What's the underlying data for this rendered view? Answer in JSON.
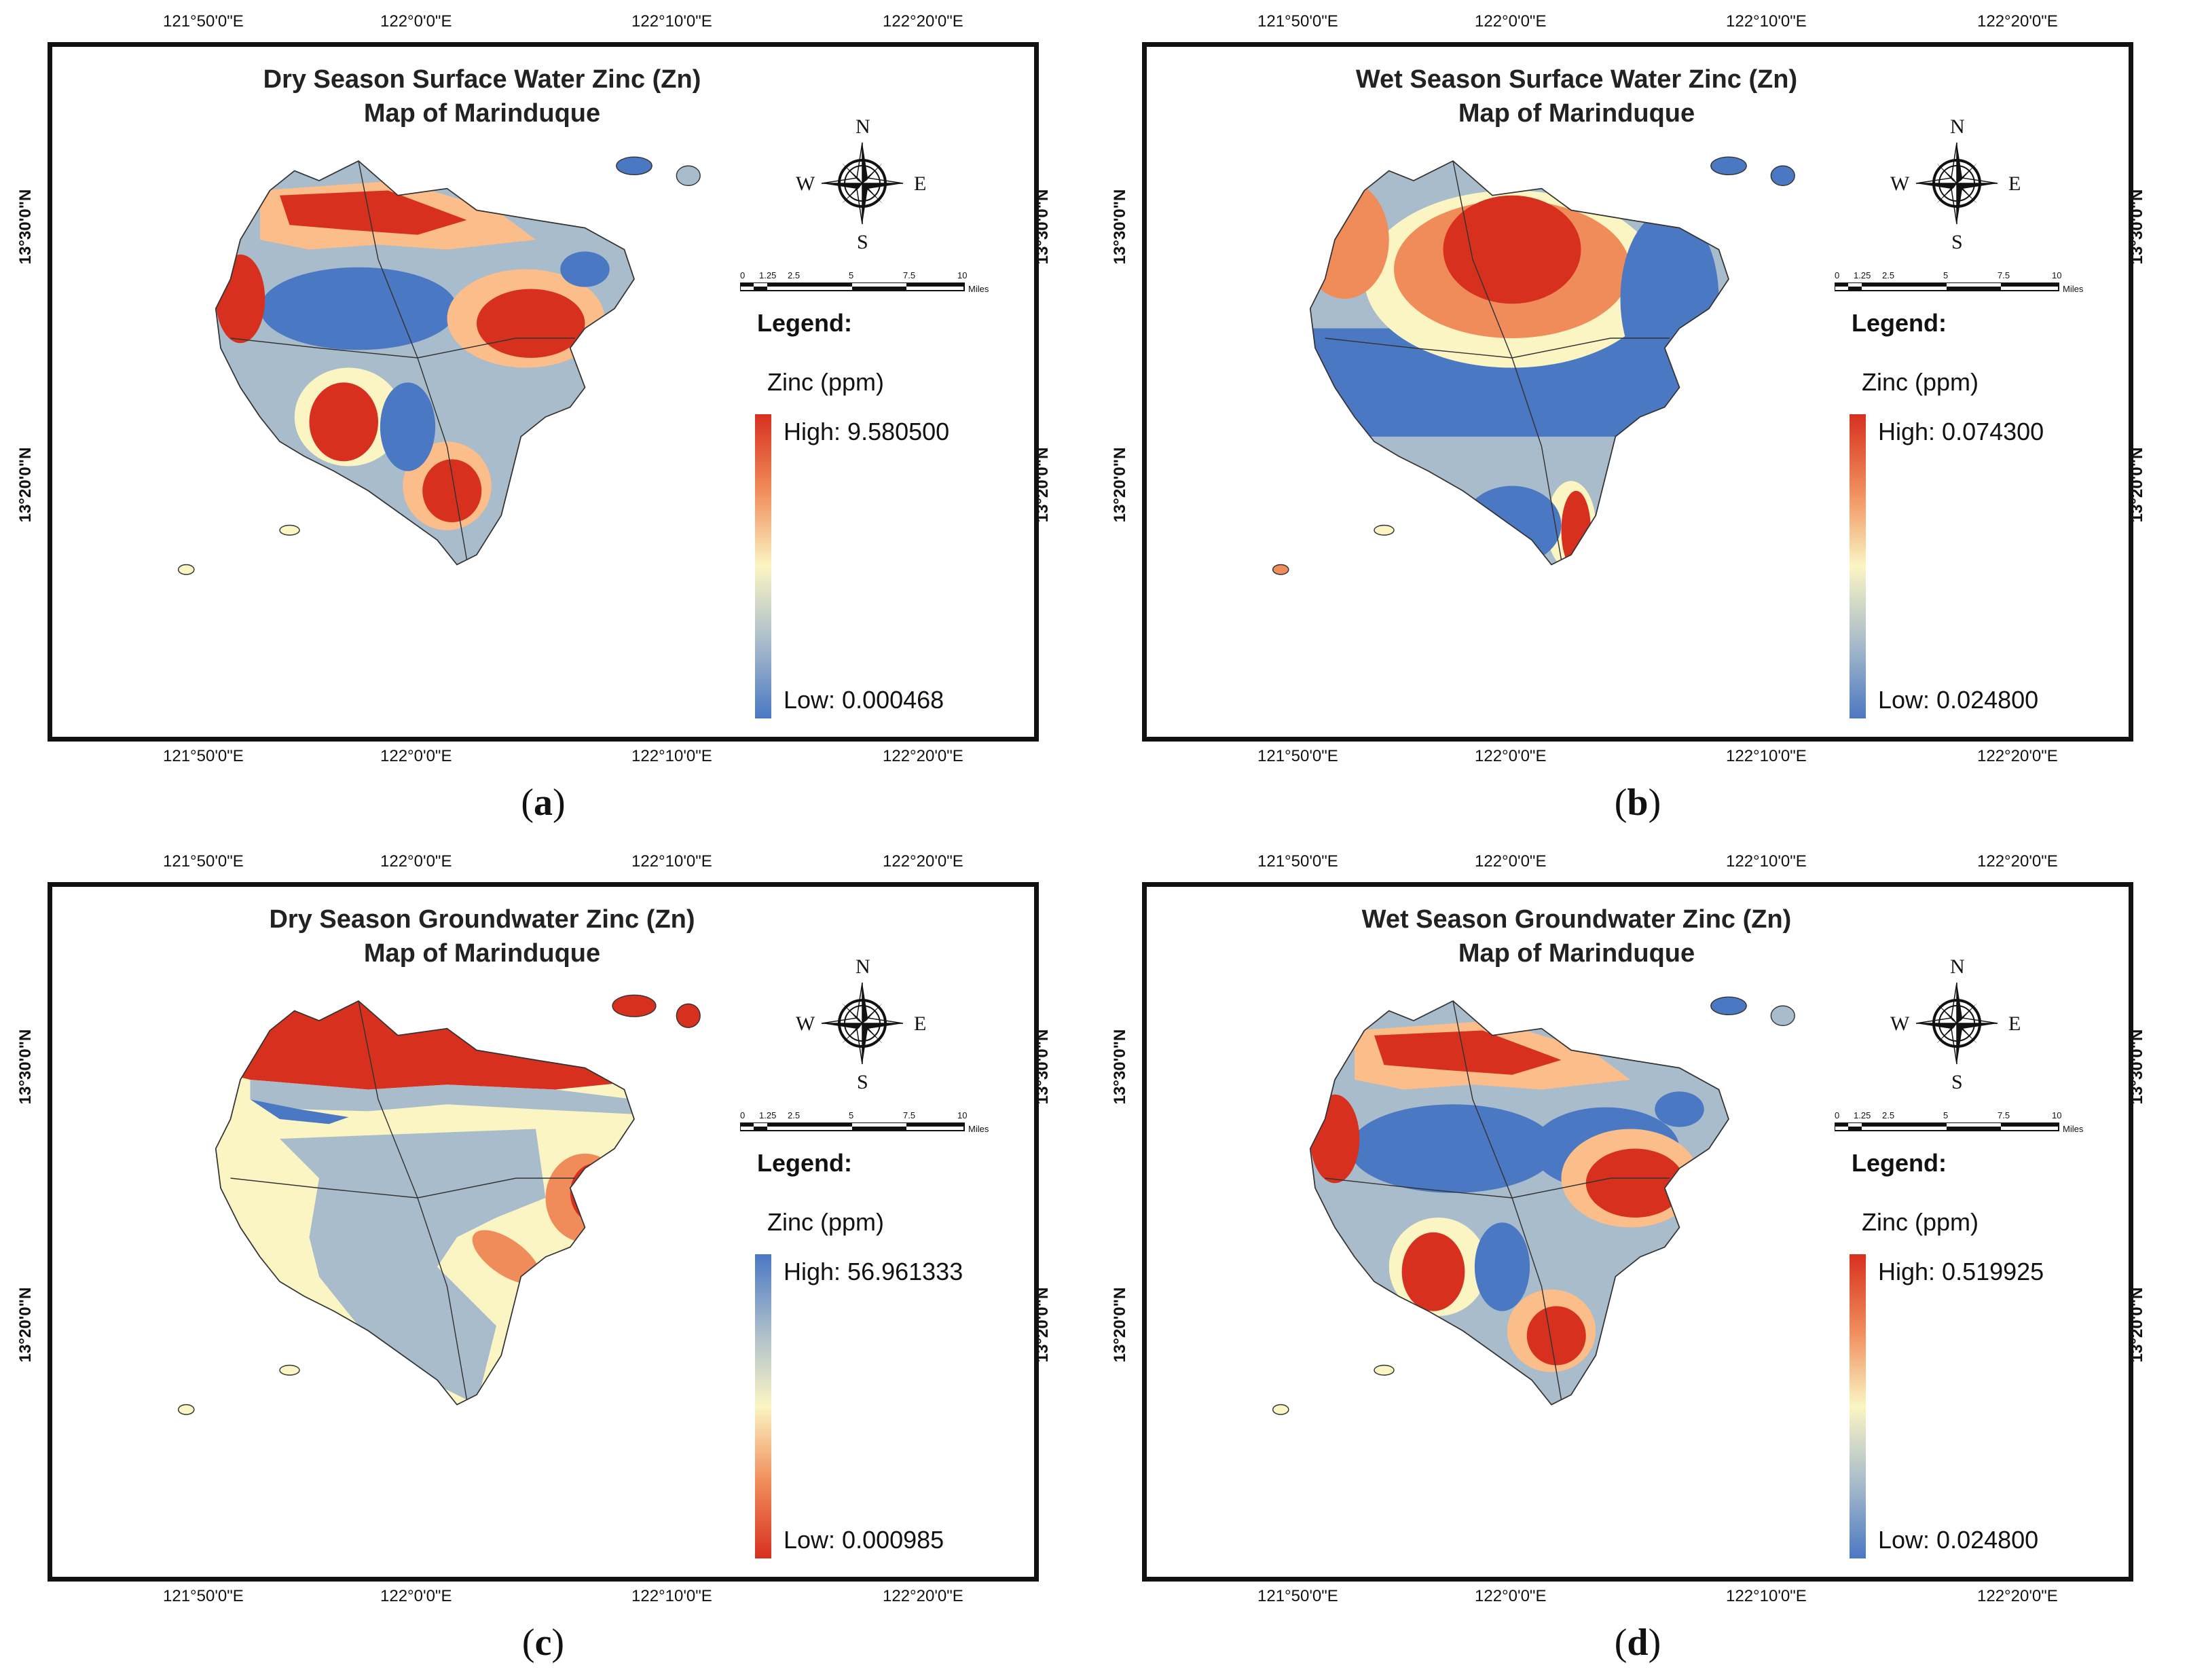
{
  "colors": {
    "high_red": "#d7301f",
    "orange": "#f08c5a",
    "light_orange": "#fbbd8a",
    "cream": "#fbf5c4",
    "gray": "#a9bccb",
    "blue": "#4b78c3",
    "border": "#111111"
  },
  "top_ticks": [
    "121°50'0\"E",
    "122°0'0\"E",
    "122°10'0\"E",
    "122°20'0\"E"
  ],
  "lat_ticks": [
    "13°30'0\"N",
    "13°20'0\"N"
  ],
  "compass_letters": {
    "n": "N",
    "s": "S",
    "e": "E",
    "w": "W"
  },
  "scale": {
    "ticks": [
      "0",
      "1.25",
      "2.5",
      "5",
      "7.5",
      "10"
    ],
    "unit": "Miles"
  },
  "legend_heading": "Legend:",
  "legend_variable": "Zinc (ppm)",
  "panels": [
    {
      "id": "a",
      "caption_letter": "a",
      "title_line1": "Dry Season Surface Water Zinc (Zn)",
      "title_line2": "Map of Marinduque",
      "high_label": "High: 9.580500",
      "low_label": "Low: 0.000468",
      "high_value": 9.5805,
      "low_value": 0.000468,
      "ramp_top_color": "#d7301f",
      "ramp_bottom_color": "#4b78c3"
    },
    {
      "id": "b",
      "caption_letter": "b",
      "title_line1": "Wet Season Surface Water Zinc (Zn)",
      "title_line2": "Map of Marinduque",
      "high_label": "High: 0.074300",
      "low_label": "Low: 0.024800",
      "high_value": 0.0743,
      "low_value": 0.0248,
      "ramp_top_color": "#d7301f",
      "ramp_bottom_color": "#4b78c3"
    },
    {
      "id": "c",
      "caption_letter": "c",
      "title_line1": "Dry Season Groundwater Zinc (Zn)",
      "title_line2": "Map of Marinduque",
      "high_label": "High: 56.961333",
      "low_label": "Low: 0.000985",
      "high_value": 56.961333,
      "low_value": 0.000985,
      "ramp_top_color": "#4b78c3",
      "ramp_bottom_color": "#d7301f"
    },
    {
      "id": "d",
      "caption_letter": "d",
      "title_line1": "Wet Season Groundwater Zinc (Zn)",
      "title_line2": "Map of Marinduque",
      "high_label": "High: 0.519925",
      "low_label": "Low: 0.024800",
      "high_value": 0.519925,
      "low_value": 0.0248,
      "ramp_top_color": "#d7301f",
      "ramp_bottom_color": "#4b78c3"
    }
  ]
}
